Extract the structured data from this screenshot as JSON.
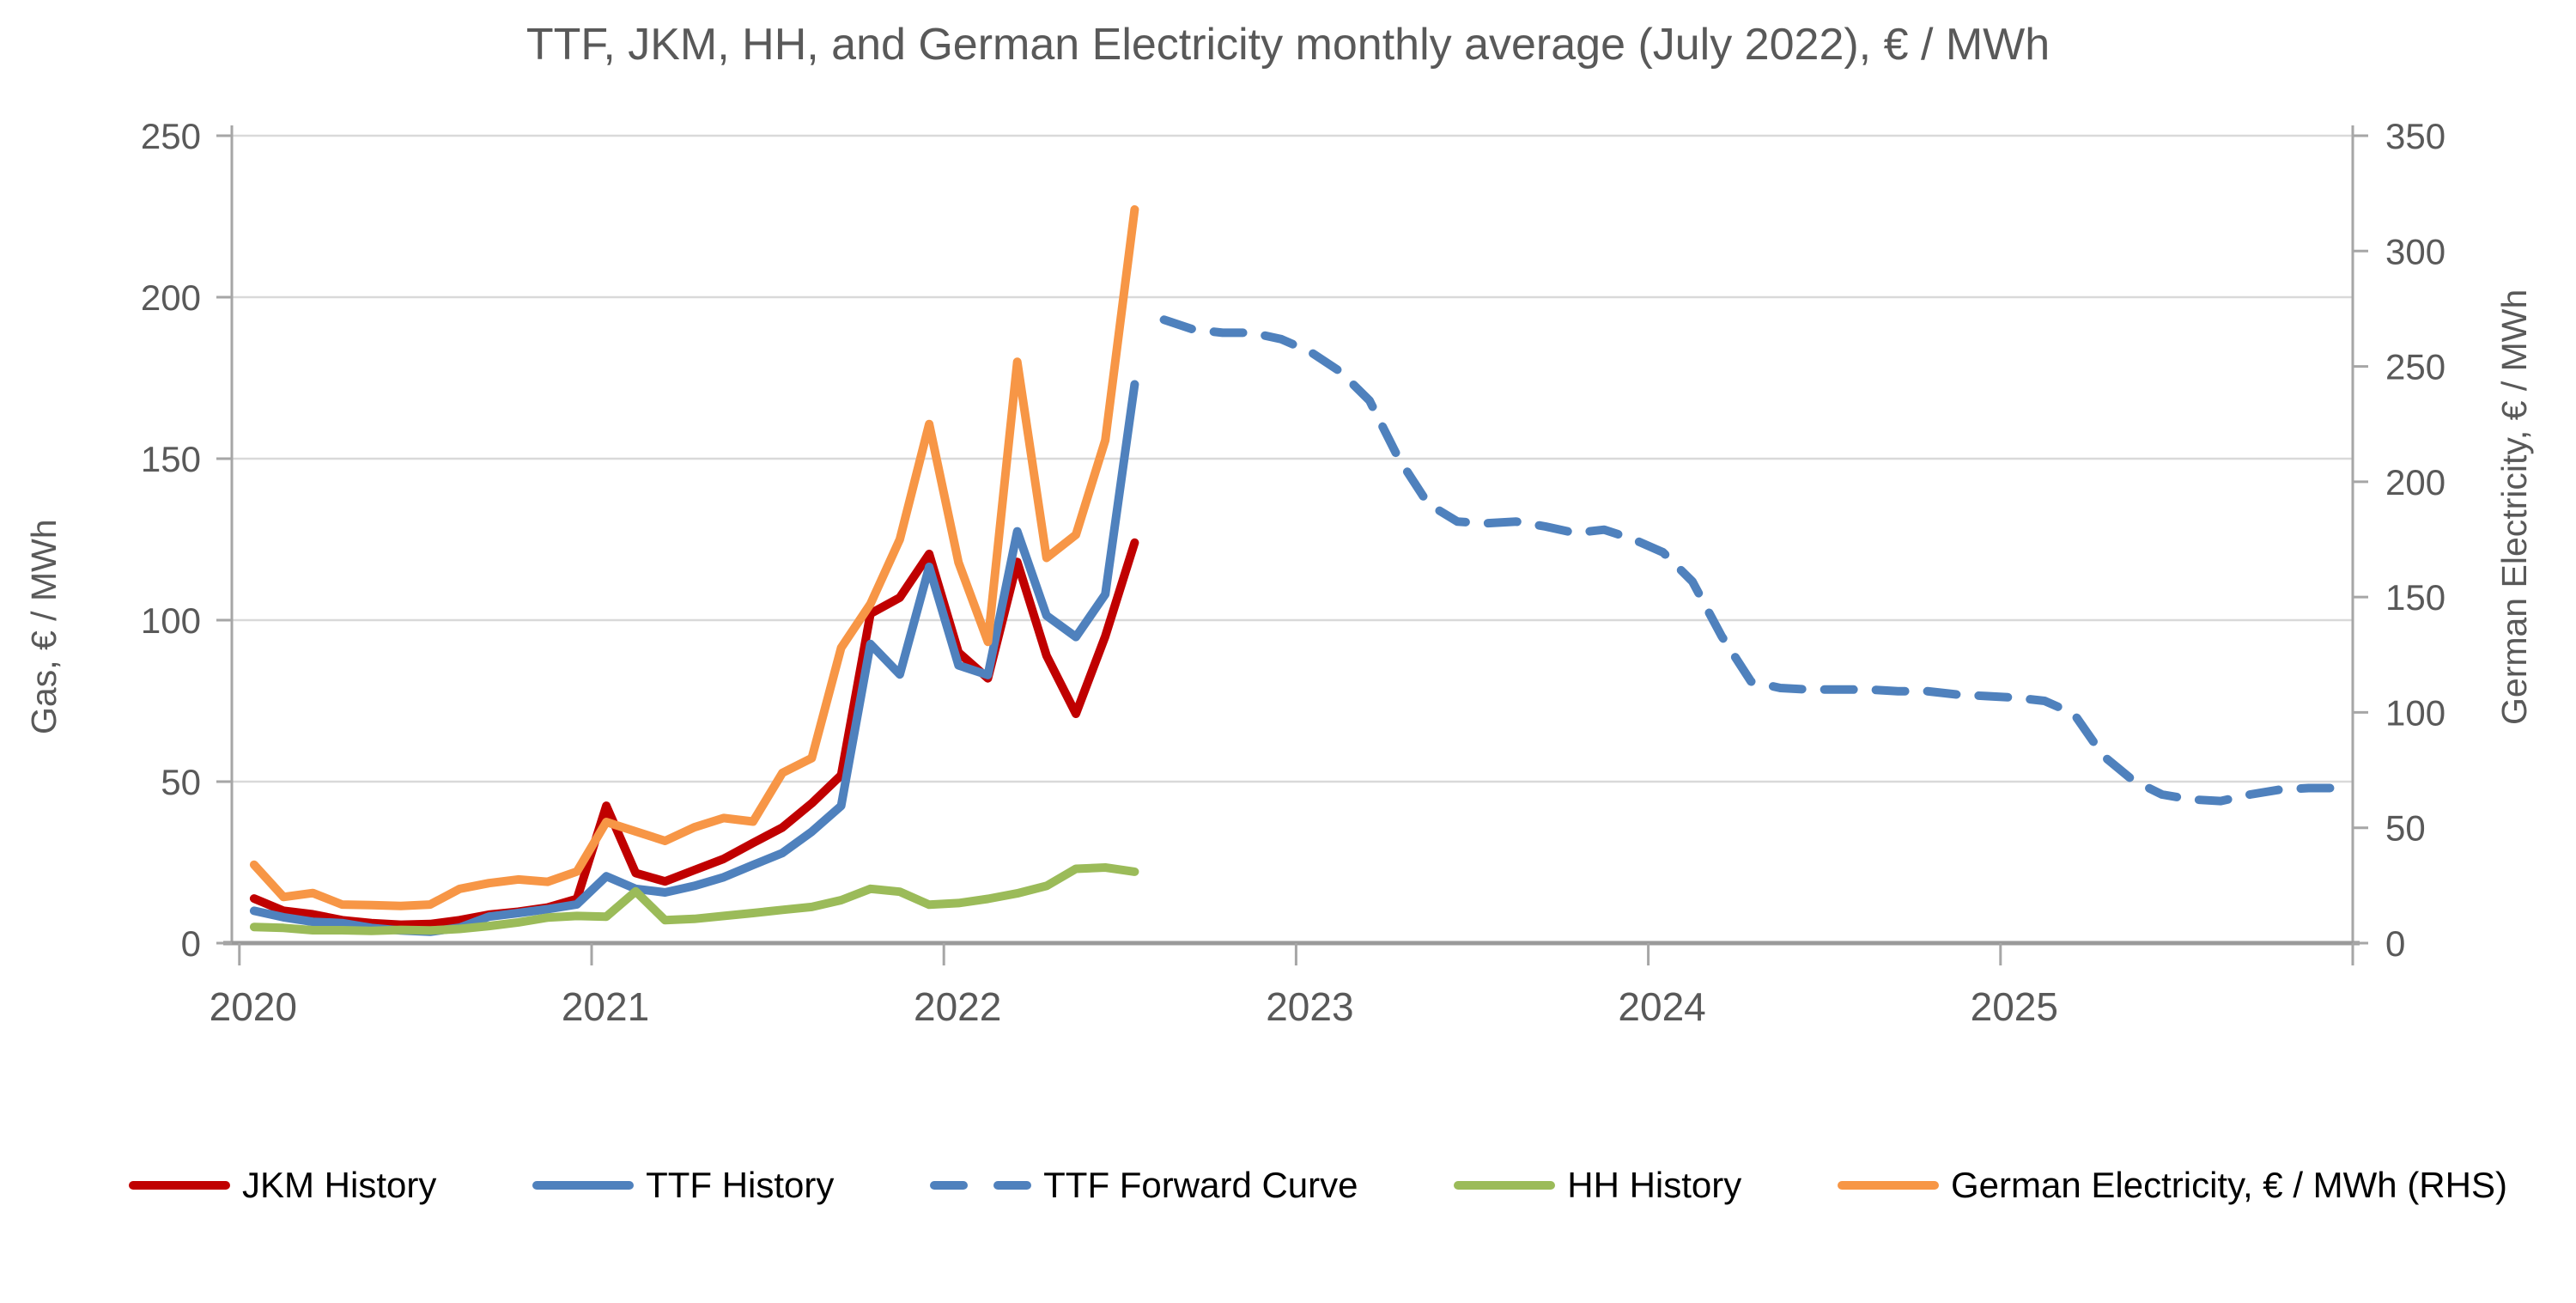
{
  "title": "TTF, JKM, HH, and German Electricity monthly average (July 2022), € / MWh",
  "left_axis": {
    "title": "Gas, € / MWh",
    "ticks": [
      0,
      50,
      100,
      150,
      200,
      250
    ],
    "min": 0,
    "max": 250
  },
  "right_axis": {
    "title": "German Electricity, € / MWh",
    "ticks": [
      0,
      50,
      100,
      150,
      200,
      250,
      300,
      350
    ],
    "min": 0,
    "max": 350
  },
  "x_axis": {
    "years": [
      "2020",
      "2021",
      "2022",
      "2023",
      "2024",
      "2025"
    ]
  },
  "colors": {
    "jkm": "#C00000",
    "ttf": "#4F81BD",
    "forward": "#4F81BD",
    "hh": "#9BBB59",
    "german": "#F79646",
    "gridline": "#D9D9D9",
    "axis": "#A6A6A6",
    "text": "#595959"
  },
  "legend": [
    {
      "label": "JKM History",
      "color": "#C00000",
      "dashed": false
    },
    {
      "label": "TTF History",
      "color": "#4F81BD",
      "dashed": false
    },
    {
      "label": "TTF Forward Curve",
      "color": "#4F81BD",
      "dashed": true
    },
    {
      "label": "HH History",
      "color": "#9BBB59",
      "dashed": false
    },
    {
      "label": "German Electricity, € / MWh (RHS)",
      "color": "#F79646",
      "dashed": false
    }
  ],
  "chart_data": {
    "type": "line",
    "title": "TTF, JKM, HH, and German Electricity monthly average (July 2022), € / MWh",
    "x_unit": "month",
    "x_start": "2020-01",
    "x_range_months": 72,
    "grid": true,
    "legend_position": "bottom",
    "ylim_left": [
      0,
      250
    ],
    "ylim_right": [
      0,
      350
    ],
    "series": [
      {
        "name": "JKM History",
        "axis": "left",
        "color": "#C00000",
        "dashed": false,
        "start_month": 0,
        "values": [
          13.8,
          10,
          8.9,
          7.1,
          6.2,
          5.7,
          5.9,
          7.1,
          8.8,
          9.7,
          11,
          13.7,
          42.5,
          21.7,
          19.1,
          22.6,
          26.1,
          31,
          35.8,
          43.3,
          52,
          102,
          107,
          120.5,
          90,
          82,
          118,
          89,
          71,
          95,
          124
        ]
      },
      {
        "name": "TTF History",
        "axis": "left",
        "color": "#4F81BD",
        "dashed": false,
        "start_month": 0,
        "values": [
          10,
          8,
          6.6,
          6.2,
          4.7,
          3.9,
          3.5,
          4.8,
          8.2,
          9.3,
          10.5,
          12,
          20.7,
          16.8,
          15.7,
          17.7,
          20.4,
          24.2,
          27.9,
          34.5,
          42.5,
          92.6,
          83.2,
          116.5,
          86,
          83,
          127.5,
          101.4,
          94.8,
          108,
          173
        ]
      },
      {
        "name": "TTF Forward Curve",
        "axis": "left",
        "color": "#4F81BD",
        "dashed": true,
        "start_month": 31,
        "values": [
          193,
          190,
          189,
          189,
          187,
          183,
          177,
          168,
          150,
          136,
          130.5,
          130,
          130.5,
          129,
          127,
          128,
          125,
          121,
          112,
          95,
          81,
          79,
          78.5,
          78.5,
          78.5,
          78,
          78,
          77,
          76.5,
          76,
          75,
          71,
          58,
          50.5,
          46,
          44.5,
          44,
          46,
          47.5,
          48,
          48
        ]
      },
      {
        "name": "HH History",
        "axis": "left",
        "color": "#9BBB59",
        "dashed": false,
        "start_month": 0,
        "values": [
          5,
          4.7,
          4,
          4,
          3.8,
          4.1,
          3.9,
          4.4,
          5.3,
          6.4,
          7.9,
          8.4,
          8.2,
          16,
          7.1,
          7.5,
          8.4,
          9.3,
          10.3,
          11.2,
          13.3,
          16.8,
          15.9,
          11.9,
          12.4,
          13.7,
          15.4,
          17.7,
          23,
          23.4,
          22.1
        ]
      },
      {
        "name": "German Electricity, € / MWh (RHS)",
        "axis": "right",
        "color": "#F79646",
        "dashed": false,
        "start_month": 0,
        "values": [
          34,
          20,
          21.7,
          16.7,
          16.5,
          16.1,
          16.7,
          23.5,
          26,
          27.6,
          26.6,
          31,
          52.5,
          48.4,
          44.3,
          50.2,
          54.2,
          52.7,
          73.8,
          80.2,
          128,
          147,
          175,
          225,
          165,
          130.6,
          252,
          167,
          177,
          218,
          318
        ]
      }
    ]
  }
}
